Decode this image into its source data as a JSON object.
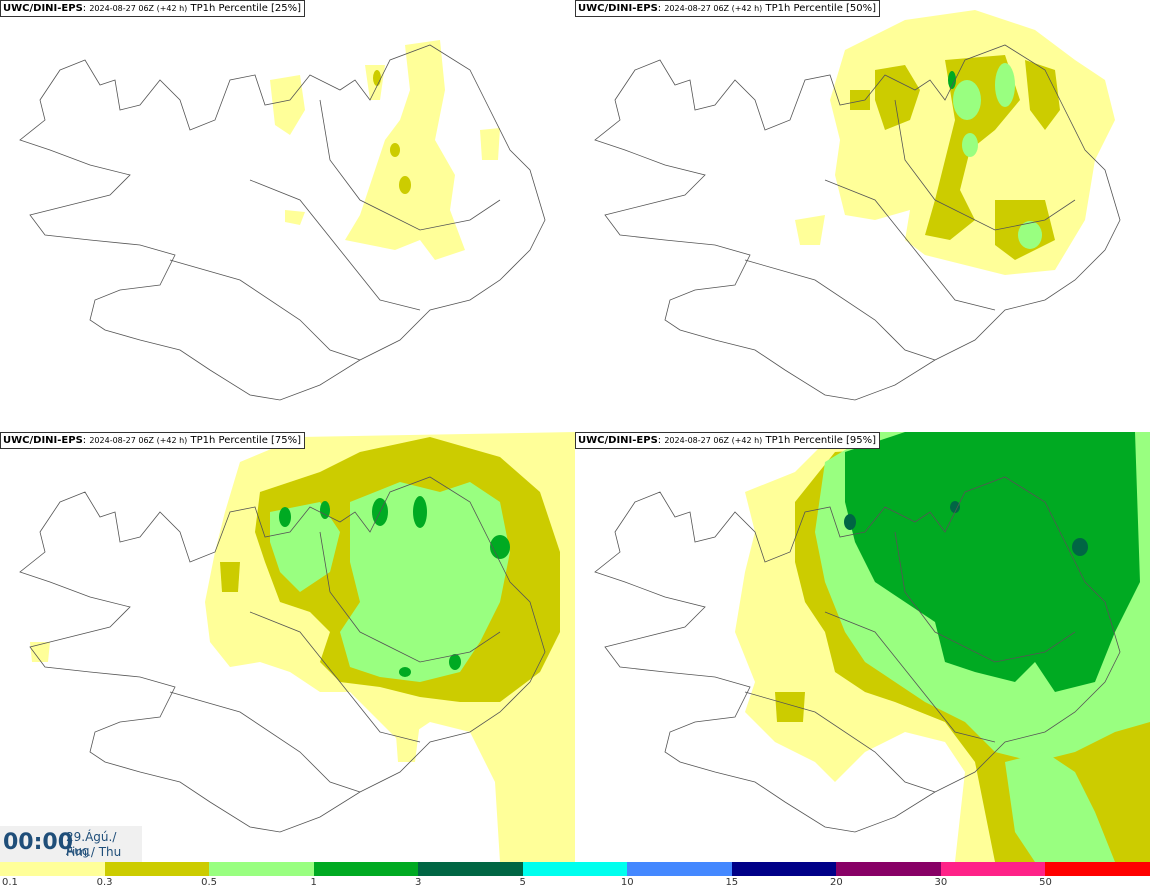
{
  "panels": [
    {
      "model": "UWC/DINI-EPS",
      "run": "2024-08-27 06Z (+42 h)",
      "label": "TP1h Percentile [25%]"
    },
    {
      "model": "UWC/DINI-EPS",
      "run": "2024-08-27 06Z (+42 h)",
      "label": "TP1h Percentile [50%]"
    },
    {
      "model": "UWC/DINI-EPS",
      "run": "2024-08-27 06Z (+42 h)",
      "label": "TP1h Percentile [75%]"
    },
    {
      "model": "UWC/DINI-EPS",
      "run": "2024-08-27 06Z (+42 h)",
      "label": "TP1h Percentile [95%]"
    }
  ],
  "time": {
    "clock": "00:00",
    "date_line1": "29.Ágú./ Aug",
    "date_line2": "Fim./ Thu"
  },
  "legend": {
    "labels": [
      "0.1",
      "0.3",
      "0.5",
      "1",
      "3",
      "5",
      "10",
      "15",
      "20",
      "30",
      "50"
    ],
    "colors": [
      "#ffff99",
      "#cccc00",
      "#99ff80",
      "#00aa22",
      "#006644",
      "#00ffee",
      "#4488ff",
      "#000088",
      "#880066",
      "#ff2288",
      "#ff0000"
    ]
  }
}
